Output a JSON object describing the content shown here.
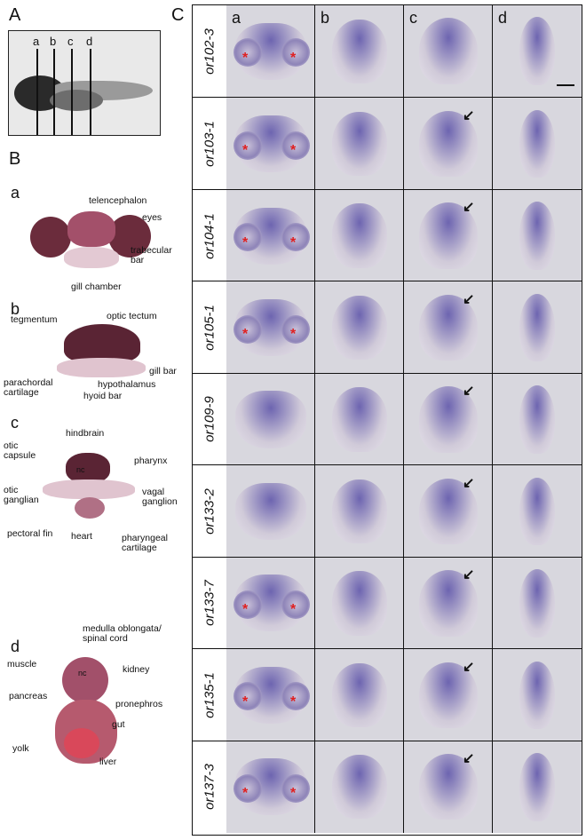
{
  "panels": {
    "A": "A",
    "B": "B",
    "C": "C"
  },
  "panel_A": {
    "section_letters": [
      "a",
      "b",
      "c",
      "d"
    ]
  },
  "panel_B": {
    "sub_a": {
      "letter": "a",
      "labels": [
        "telencephalon",
        "eyes",
        "trabecular",
        "bar",
        "gill chamber"
      ]
    },
    "sub_b": {
      "letter": "b",
      "labels": [
        "tegmentum",
        "optic tectum",
        "gill bar",
        "parachordal",
        "cartilage",
        "hypothalamus",
        "hyoid bar"
      ]
    },
    "sub_c": {
      "letter": "c",
      "labels": [
        "hindbrain",
        "otic",
        "capsule",
        "pharynx",
        "nc",
        "otic",
        "ganglian",
        "vagal",
        "ganglion",
        "pectoral fin",
        "heart",
        "pharyngeal",
        "cartilage"
      ]
    },
    "sub_d": {
      "letter": "d",
      "labels": [
        "medulla oblongata/",
        "spinal cord",
        "muscle",
        "kidney",
        "nc",
        "pancreas",
        "pronephros",
        "gut",
        "yolk",
        "liver"
      ]
    }
  },
  "panel_C": {
    "columns": [
      "a",
      "b",
      "c",
      "d"
    ],
    "rows": [
      "or102-3",
      "or103-1",
      "or104-1",
      "or105-1",
      "or109-9",
      "or133-2",
      "or133-7",
      "or135-1",
      "or137-3"
    ]
  },
  "colors": {
    "stain": "#5a50a8",
    "tissue": "#cfc8d8",
    "red_star": "#e02020",
    "black_arrow": "#111111",
    "green": "#1aa24a",
    "magenta": "#e040c0",
    "purple": "#7a3fb0",
    "blue": "#3a7de0"
  }
}
